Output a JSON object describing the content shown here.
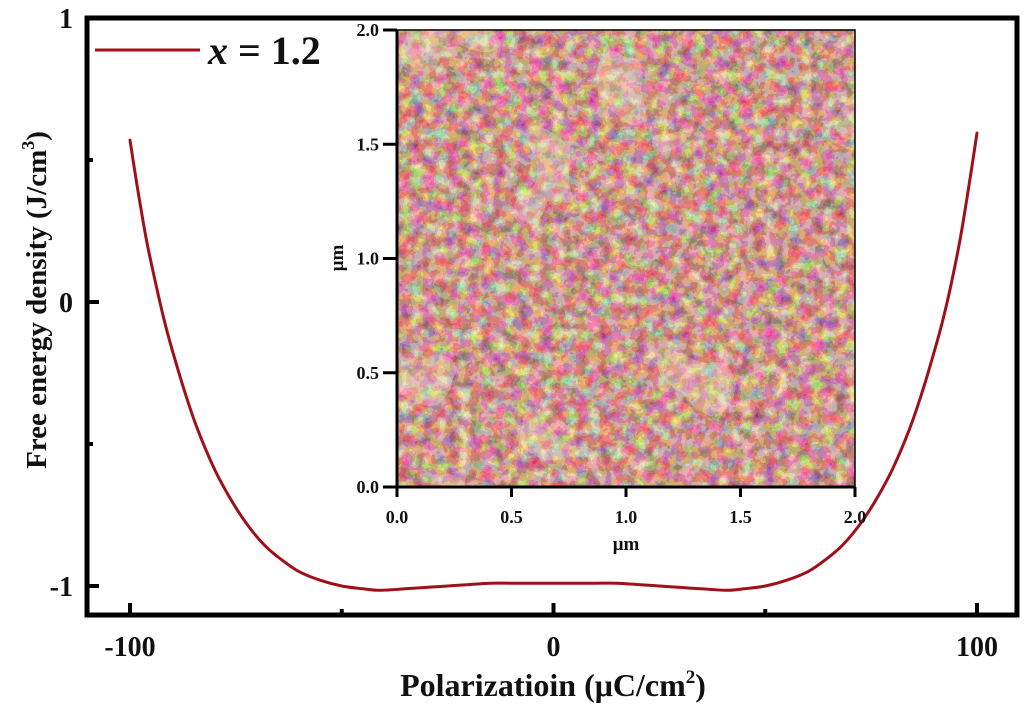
{
  "chart_data": [
    {
      "type": "line",
      "title": "",
      "xlabel": "Polarizatioin (μC/cm",
      "xlabel_sup": "2",
      "xlabel_suffix": ")",
      "ylabel": "Free energy density (J/cm",
      "ylabel_sup": "3",
      "ylabel_suffix": ")",
      "xlim": [
        -110,
        110
      ],
      "ylim": [
        -1.11,
        1.0
      ],
      "x_major_ticks": [
        -100,
        0,
        100
      ],
      "x_tick_labels": [
        "-100",
        "0",
        "100"
      ],
      "x_minor_ticks": [
        -50,
        50
      ],
      "y_major_ticks": [
        -1,
        0,
        1
      ],
      "y_tick_labels": [
        "-1",
        "0",
        "1"
      ],
      "y_minor_ticks": [
        -0.5,
        0.5
      ],
      "grid": false,
      "legend_position": "top-left",
      "series": [
        {
          "name": "x = 1.2",
          "name_italic": "x",
          "name_rest": " = 1.2",
          "color": "#a01018",
          "x": [
            -100,
            -98,
            -96,
            -94,
            -92,
            -90,
            -87,
            -84,
            -80,
            -76,
            -72,
            -68,
            -64,
            -60,
            -55,
            -50,
            -45,
            -41,
            -35,
            -30,
            -25,
            -20,
            -15,
            -10,
            -5,
            0,
            5,
            10,
            15,
            20,
            25,
            30,
            35,
            41,
            45,
            50,
            55,
            60,
            64,
            68,
            72,
            76,
            80,
            84,
            87,
            90,
            92,
            94,
            96,
            98,
            100
          ],
          "y": [
            0.57,
            0.38,
            0.21,
            0.07,
            -0.06,
            -0.17,
            -0.32,
            -0.45,
            -0.59,
            -0.7,
            -0.79,
            -0.86,
            -0.91,
            -0.95,
            -0.98,
            -1.0,
            -1.01,
            -1.015,
            -1.01,
            -1.005,
            -1.0,
            -0.995,
            -0.99,
            -0.99,
            -0.99,
            -0.99,
            -0.99,
            -0.99,
            -0.99,
            -0.995,
            -1.0,
            -1.005,
            -1.01,
            -1.015,
            -1.01,
            -1.0,
            -0.98,
            -0.95,
            -0.91,
            -0.86,
            -0.79,
            -0.7,
            -0.59,
            -0.45,
            -0.32,
            -0.17,
            -0.06,
            0.07,
            0.22,
            0.4,
            0.595
          ]
        }
      ]
    },
    {
      "type": "heatmap",
      "title": "",
      "xlabel": "μm",
      "ylabel": "μm",
      "xlim": [
        0.0,
        2.0
      ],
      "ylim": [
        0.0,
        2.0
      ],
      "x_tick_labels": [
        "0.0",
        "0.5",
        "1.0",
        "1.5",
        "2.0"
      ],
      "y_tick_labels": [
        "0.0",
        "0.5",
        "1.0",
        "1.5",
        "2.0"
      ],
      "x_ticks": [
        0.0,
        0.5,
        1.0,
        1.5,
        2.0
      ],
      "y_ticks": [
        0.0,
        0.5,
        1.0,
        1.5,
        2.0
      ],
      "colormap": [
        "#2a0a3a",
        "#5a1e6e",
        "#8a3a6a",
        "#b06a20",
        "#e0b030",
        "#fff4c0"
      ]
    }
  ]
}
